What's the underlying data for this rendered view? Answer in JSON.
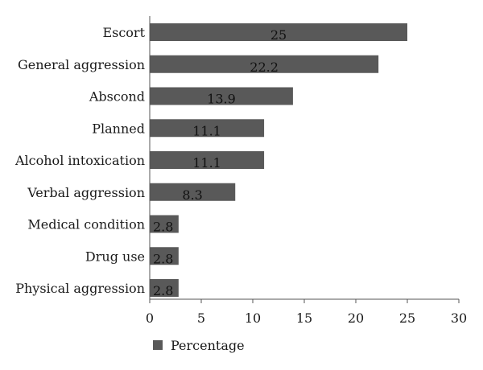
{
  "chart_data": {
    "type": "bar",
    "orientation": "horizontal",
    "categories": [
      "Escort",
      "General aggression",
      "Abscond",
      "Planned",
      "Alcohol intoxication",
      "Verbal aggression",
      "Medical condition",
      "Drug use",
      "Physical aggression"
    ],
    "series": [
      {
        "name": "Percentage",
        "values": [
          25,
          22.2,
          13.9,
          11.1,
          11.1,
          8.3,
          2.8,
          2.8,
          2.8
        ],
        "labels": [
          "25",
          "22.2",
          "13.9",
          "11.1",
          "11.1",
          "8.3",
          "2.8",
          "2.8",
          "2.8"
        ],
        "color": "#595959"
      }
    ],
    "xlim": [
      0,
      30
    ],
    "xticks": [
      "0",
      "5",
      "10",
      "15",
      "20",
      "25",
      "30"
    ],
    "grid": false,
    "legend": "bottom-left"
  }
}
